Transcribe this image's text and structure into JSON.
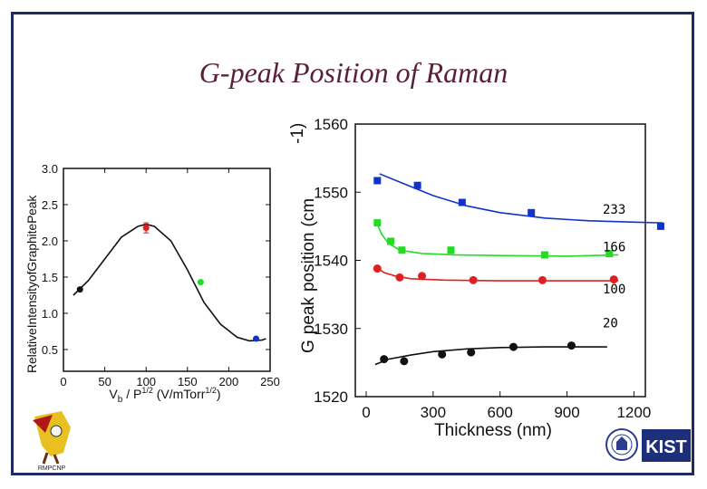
{
  "slide": {
    "title": "G-peak Position of Raman",
    "logo_left_text": "RMPCNP",
    "logo_right_text": "KIST"
  },
  "colors": {
    "frame": "#1f2a66",
    "title": "#5a1f3c",
    "black": "#111111",
    "red": "#e02020",
    "green": "#22dd22",
    "blue": "#1133cc"
  },
  "chart_data": [
    {
      "type": "scatter",
      "xlabel": "V_b / P^1/2 (V/mTorr^1/2)",
      "ylabel": "Relative Intensity of Graphite Peak",
      "xlim": [
        0,
        250
      ],
      "ylim": [
        0.2,
        3.0
      ],
      "xticks": [
        0,
        50,
        100,
        150,
        200,
        250
      ],
      "yticks": [
        0.5,
        1.0,
        1.5,
        2.0,
        2.5,
        3.0
      ],
      "xtick_labels": [
        "0",
        "50",
        "100",
        "150",
        "200",
        "250"
      ],
      "ytick_labels": [
        "0.5",
        "1.0",
        "1.5",
        "2.0",
        "2.5",
        "3.0"
      ],
      "x_prefix": "V",
      "x_sub": "b",
      "x_mid": " / P",
      "x_sup": "1/2",
      "x_units": " (V/mTorr",
      "x_units_sup": "1/2",
      "x_close": ")",
      "ylabel_chars": "R e l a t i v e I n t e n s i t y o f G r a p h i t e P e a k",
      "points": [
        {
          "x": 20,
          "y": 1.33,
          "color": "black"
        },
        {
          "x": 100,
          "y": 2.18,
          "color": "red",
          "err": 0.07
        },
        {
          "x": 166,
          "y": 1.43,
          "color": "green"
        },
        {
          "x": 233,
          "y": 0.65,
          "color": "blue"
        }
      ],
      "fit_curve": {
        "x": [
          12,
          30,
          50,
          70,
          90,
          100,
          110,
          130,
          150,
          170,
          190,
          210,
          225,
          240,
          245
        ],
        "y": [
          1.25,
          1.45,
          1.75,
          2.05,
          2.2,
          2.23,
          2.2,
          2.0,
          1.6,
          1.15,
          0.85,
          0.67,
          0.62,
          0.63,
          0.65
        ]
      }
    },
    {
      "type": "scatter",
      "xlabel": "Thickness (nm)",
      "ylabel": "G peak position (cm-1)",
      "ylabel_parts": [
        "G",
        "peak",
        "position",
        "(cm",
        "-1)"
      ],
      "xlim": [
        0,
        1300
      ],
      "ylim": [
        1520,
        1560
      ],
      "xticks": [
        0,
        300,
        600,
        900,
        1200
      ],
      "yticks": [
        1520,
        1530,
        1540,
        1550,
        1560
      ],
      "xtick_labels": [
        "0",
        "300",
        "600",
        "900",
        "1200"
      ],
      "ytick_labels": [
        "1520",
        "1530",
        "1540",
        "1550",
        "1560"
      ],
      "series": [
        {
          "name": "233",
          "color": "blue",
          "marker": "square",
          "x": [
            50,
            230,
            430,
            740,
            1320
          ],
          "y": [
            1551.7,
            1551.0,
            1548.5,
            1547.0,
            1545.0
          ],
          "fit_x": [
            60,
            150,
            300,
            450,
            600,
            800,
            1000,
            1200,
            1330
          ],
          "fit_y": [
            1552.7,
            1551.5,
            1549.5,
            1548.0,
            1547.0,
            1546.2,
            1545.8,
            1545.6,
            1545.5
          ]
        },
        {
          "name": "166",
          "color": "green",
          "marker": "square",
          "x": [
            50,
            110,
            160,
            380,
            800,
            1090
          ],
          "y": [
            1545.5,
            1542.8,
            1541.5,
            1541.5,
            1540.8,
            1541.0
          ],
          "fit_x": [
            40,
            70,
            100,
            150,
            250,
            400,
            600,
            900,
            1130
          ],
          "fit_y": [
            1546.0,
            1543.8,
            1542.5,
            1541.5,
            1541.0,
            1540.8,
            1540.7,
            1540.6,
            1540.8
          ]
        },
        {
          "name": "100",
          "color": "red",
          "marker": "circle",
          "x": [
            50,
            150,
            250,
            480,
            790,
            1110
          ],
          "y": [
            1538.8,
            1537.5,
            1537.7,
            1537.1,
            1537.1,
            1537.2
          ],
          "fit_x": [
            40,
            80,
            130,
            200,
            350,
            600,
            900,
            1130
          ],
          "fit_y": [
            1539.1,
            1538.2,
            1537.7,
            1537.3,
            1537.1,
            1537.0,
            1537.0,
            1537.0
          ]
        },
        {
          "name": "20",
          "color": "black",
          "marker": "circle",
          "x": [
            80,
            170,
            340,
            470,
            660,
            920
          ],
          "y": [
            1525.5,
            1525.2,
            1526.2,
            1526.5,
            1527.3,
            1527.5
          ],
          "fit_x": [
            40,
            100,
            200,
            300,
            450,
            600,
            800,
            1000,
            1080
          ],
          "fit_y": [
            1524.7,
            1525.5,
            1526.1,
            1526.6,
            1527.0,
            1527.2,
            1527.3,
            1527.3,
            1527.3
          ]
        }
      ]
    }
  ]
}
